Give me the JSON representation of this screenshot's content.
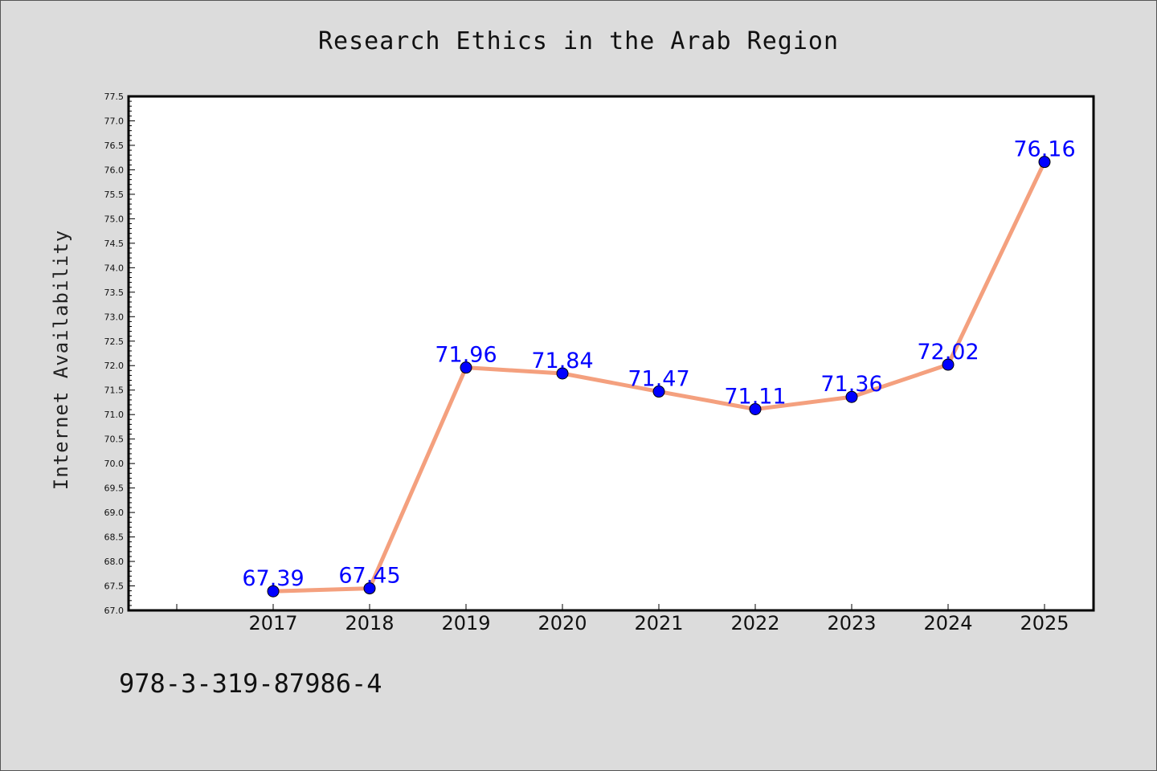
{
  "chart_data": {
    "type": "line",
    "title": "Research Ethics in the Arab Region",
    "xlabel": "",
    "ylabel": "Internet Availability",
    "categories": [
      "2017",
      "2018",
      "2019",
      "2020",
      "2021",
      "2022",
      "2023",
      "2024",
      "2025"
    ],
    "values": [
      67.39,
      67.45,
      71.96,
      71.84,
      71.47,
      71.11,
      71.36,
      72.02,
      76.16
    ],
    "data_labels": [
      "67.39",
      "67.45",
      "71.96",
      "71.84",
      "71.47",
      "71.11",
      "71.36",
      "72.02",
      "76.16"
    ],
    "ylim": [
      67.0,
      77.5
    ],
    "ytick_step": 0.5,
    "grid": false,
    "line_color": "#f4a07e",
    "marker_color": "#0000ff",
    "label_color": "#0000ff"
  },
  "footer": {
    "text": "978-3-319-87986-4"
  }
}
